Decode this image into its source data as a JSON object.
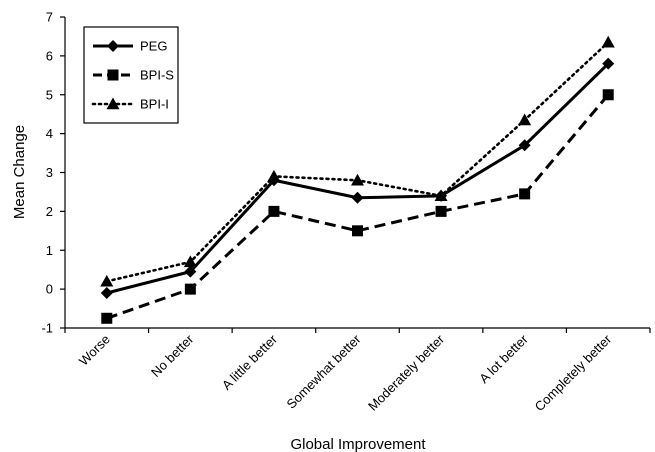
{
  "chart_data": {
    "type": "line",
    "xlabel": "Global Improvement",
    "ylabel": "Mean Change",
    "ylim": [
      -1,
      7
    ],
    "yticks": [
      -1,
      0,
      1,
      2,
      3,
      4,
      5,
      6,
      7
    ],
    "grid": false,
    "legend_position": "top-left",
    "categories": [
      "Worse",
      "No better",
      "A little better",
      "Somewhat better",
      "Moderately better",
      "A lot better",
      "Completely better"
    ],
    "series": [
      {
        "name": "PEG",
        "line": "solid",
        "marker": "diamond",
        "values": [
          -0.1,
          0.45,
          2.8,
          2.35,
          2.4,
          3.7,
          5.8
        ]
      },
      {
        "name": "BPI-S",
        "line": "dashed",
        "marker": "square",
        "values": [
          -0.75,
          0.0,
          2.0,
          1.5,
          2.0,
          2.45,
          5.0
        ]
      },
      {
        "name": "BPI-I",
        "line": "dotted",
        "marker": "triangle",
        "values": [
          0.2,
          0.7,
          2.9,
          2.8,
          2.4,
          4.35,
          6.35
        ]
      }
    ],
    "colors": {
      "line": "#000000",
      "background": "#ffffff"
    }
  }
}
